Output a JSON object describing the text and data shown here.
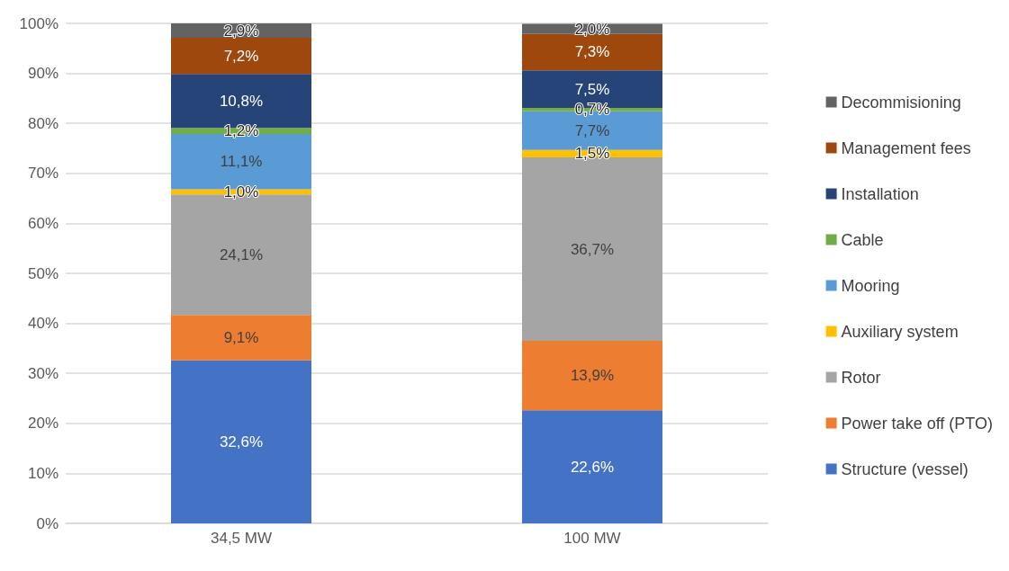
{
  "chart_data": {
    "type": "bar",
    "stacked": true,
    "categories": [
      "34,5 MW",
      "100 MW"
    ],
    "series": [
      {
        "name": "Structure (vessel)",
        "color": "#4472c4",
        "values": [
          32.6,
          22.6
        ],
        "value_labels": [
          "32,6%",
          "22,6%"
        ]
      },
      {
        "name": "Power take off (PTO)",
        "color": "#ed7d31",
        "values": [
          9.1,
          13.9
        ],
        "value_labels": [
          "9,1%",
          "13,9%"
        ]
      },
      {
        "name": "Rotor",
        "color": "#a5a5a5",
        "values": [
          24.1,
          36.7
        ],
        "value_labels": [
          "24,1%",
          "36,7%"
        ]
      },
      {
        "name": "Auxiliary system",
        "color": "#ffc000",
        "values": [
          1.0,
          1.5
        ],
        "value_labels": [
          "1,0%",
          "1,5%"
        ]
      },
      {
        "name": "Mooring",
        "color": "#5b9bd5",
        "values": [
          11.1,
          7.7
        ],
        "value_labels": [
          "11,1%",
          "7,7%"
        ]
      },
      {
        "name": "Cable",
        "color": "#70ad47",
        "values": [
          1.2,
          0.7
        ],
        "value_labels": [
          "1,2%",
          "0,7%"
        ]
      },
      {
        "name": "Installation",
        "color": "#264478",
        "values": [
          10.8,
          7.5
        ],
        "value_labels": [
          "10,8%",
          "7,5%"
        ]
      },
      {
        "name": "Management fees",
        "color": "#9e480e",
        "values": [
          7.2,
          7.3
        ],
        "value_labels": [
          "7,2%",
          "7,3%"
        ]
      },
      {
        "name": "Decommisioning",
        "color": "#636363",
        "values": [
          2.9,
          2.0
        ],
        "value_labels": [
          "2,9%",
          "2,0%"
        ]
      }
    ],
    "ylim": [
      0,
      100
    ],
    "yticks": [
      {
        "value": 0,
        "label": "0%"
      },
      {
        "value": 10,
        "label": "10%"
      },
      {
        "value": 20,
        "label": "20%"
      },
      {
        "value": 30,
        "label": "30%"
      },
      {
        "value": 40,
        "label": "40%"
      },
      {
        "value": 50,
        "label": "50%"
      },
      {
        "value": 60,
        "label": "60%"
      },
      {
        "value": 70,
        "label": "70%"
      },
      {
        "value": 80,
        "label": "80%"
      },
      {
        "value": 90,
        "label": "90%"
      },
      {
        "value": 100,
        "label": "100%"
      }
    ],
    "grid": "y",
    "legend": "right"
  }
}
